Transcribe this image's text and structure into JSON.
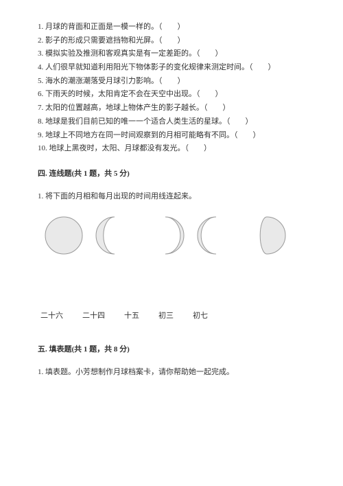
{
  "judgments": [
    {
      "num": "1",
      "text": "月球的背面和正面是一模一样的。（　　）"
    },
    {
      "num": "2",
      "text": "影子的形成只需要遮挡物和光屏。（　　）"
    },
    {
      "num": "3",
      "text": "模拟实验及推测和客观真实是有一定差距的。（　　）"
    },
    {
      "num": "4",
      "text": "人们很早就知道利用阳光下物体影子的变化规律来测定时间。（　　）"
    },
    {
      "num": "5",
      "text": "海水的潮涨潮落受月球引力影响。（　　）"
    },
    {
      "num": "6",
      "text": "下雨天的时候，太阳肯定不会在天空中出现。（　　）"
    },
    {
      "num": "7",
      "text": "太阳的位置越高，地球上物体产生的影子越长。（　　）"
    },
    {
      "num": "8",
      "text": "地球是我们目前已知的唯一一个适合人类生活的星球。（　　）"
    },
    {
      "num": "9",
      "text": "地球上不同地方在同一时间观察到的月相可能略有不同。（　　）"
    },
    {
      "num": "10",
      "text": "地球上黑夜时，太阳、月球都没有发光。（　　）"
    }
  ],
  "section4": {
    "title": "四. 连线题(共 1 题，共 5 分)",
    "q1": "1. 将下面的月相和每月出现的时间用线连起来。"
  },
  "moons": {
    "size": 56,
    "fill": "#e9e9e9",
    "stroke": "#999999",
    "strokeWidth": 1,
    "phases": [
      {
        "type": "full"
      },
      {
        "type": "crescent-left-thick"
      },
      {
        "type": "crescent-right-thin"
      },
      {
        "type": "crescent-left-thin"
      },
      {
        "type": "gibbous-right"
      }
    ]
  },
  "labels": [
    "二十六",
    "二十四",
    "十五",
    "初三",
    "初七"
  ],
  "section5": {
    "title": "五. 填表题(共 1 题，共 8 分)",
    "q1": "1. 填表题。小芳想制作月球档案卡，请你帮助她一起完成。"
  }
}
